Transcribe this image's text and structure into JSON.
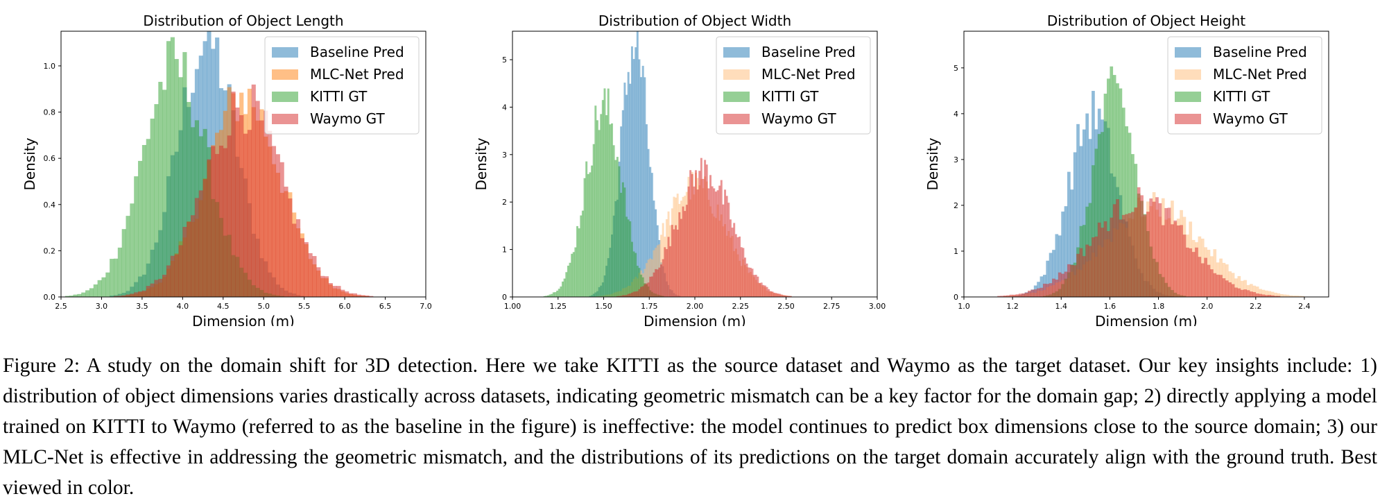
{
  "chart_data": [
    {
      "type": "histogram",
      "title": "Distribution of Object Length",
      "xlabel": "Dimension (m)",
      "ylabel": "Density",
      "xlim": [
        2.5,
        7.0
      ],
      "ylim": [
        0,
        1.15
      ],
      "xticks": [
        "2.5",
        "3.0",
        "3.5",
        "4.0",
        "4.5",
        "5.0",
        "5.5",
        "6.0",
        "6.5",
        "7.0"
      ],
      "yticks": [
        "0.0",
        "0.2",
        "0.4",
        "0.6",
        "0.8",
        "1.0"
      ],
      "legend_position": "top-right",
      "series": [
        {
          "name": "Baseline Pred",
          "color": "#1f77b4",
          "distribution": "normal",
          "mean": 4.3,
          "std": 0.36
        },
        {
          "name": "MLC-Net Pred",
          "color": "#ff7f0e",
          "distribution": "normal",
          "mean": 4.75,
          "std": 0.46
        },
        {
          "name": "KITTI GT",
          "color": "#2ca02c",
          "distribution": "normal",
          "mean": 3.9,
          "std": 0.4
        },
        {
          "name": "Waymo GT",
          "color": "#d62728",
          "distribution": "normal",
          "mean": 4.75,
          "std": 0.48
        }
      ]
    },
    {
      "type": "histogram",
      "title": "Distribution of Object Width",
      "xlabel": "Dimension (m)",
      "ylabel": "Density",
      "xlim": [
        1.0,
        3.0
      ],
      "ylim": [
        0,
        5.6
      ],
      "xticks": [
        "1.00",
        "1.25",
        "1.50",
        "1.75",
        "2.00",
        "2.25",
        "2.50",
        "2.75",
        "3.00"
      ],
      "yticks": [
        "0",
        "1",
        "2",
        "3",
        "4",
        "5"
      ],
      "legend_position": "top-right",
      "series": [
        {
          "name": "Baseline Pred",
          "color": "#1f77b4",
          "distribution": "normal",
          "mean": 1.67,
          "std": 0.075
        },
        {
          "name": "MLC-Net Pred",
          "color": "#ffbb78",
          "distribution": "normal",
          "mean": 2.0,
          "std": 0.17
        },
        {
          "name": "KITTI GT",
          "color": "#2ca02c",
          "distribution": "normal",
          "mean": 1.5,
          "std": 0.1
        },
        {
          "name": "Waymo GT",
          "color": "#d62728",
          "distribution": "normal",
          "mean": 2.05,
          "std": 0.15
        }
      ]
    },
    {
      "type": "histogram",
      "title": "Distribution of Object Height",
      "xlabel": "Dimension (m)",
      "ylabel": "Density",
      "xlim": [
        1.0,
        2.5
      ],
      "ylim": [
        0,
        5.8
      ],
      "xticks": [
        "1.0",
        "1.2",
        "1.4",
        "1.6",
        "1.8",
        "2.0",
        "2.2",
        "2.4"
      ],
      "yticks": [
        "0",
        "1",
        "2",
        "3",
        "4",
        "5"
      ],
      "legend_position": "top-right",
      "series": [
        {
          "name": "Baseline Pred",
          "color": "#1f77b4",
          "distribution": "normal",
          "mean": 1.53,
          "std": 0.1
        },
        {
          "name": "MLC-Net Pred",
          "color": "#ffbb78",
          "distribution": "normal",
          "mean": 1.78,
          "std": 0.2
        },
        {
          "name": "KITTI GT",
          "color": "#2ca02c",
          "distribution": "normal",
          "mean": 1.62,
          "std": 0.09
        },
        {
          "name": "Waymo GT",
          "color": "#d62728",
          "distribution": "normal",
          "mean": 1.72,
          "std": 0.19
        }
      ]
    }
  ],
  "caption": "Figure 2: A study on the domain shift for 3D detection. Here we take KITTI as the source dataset and Waymo as the target dataset. Our key insights include: 1) distribution of object dimensions varies drastically across datasets, indicating geometric mismatch can be a key factor for the domain gap; 2) directly applying a model trained on KITTI to Waymo (referred to as the baseline in the figure) is ineffective: the model continues to predict box dimensions close to the source domain; 3) our MLC-Net is effective in addressing the geometric mismatch, and the distributions of its predictions on the target domain accurately align with the ground truth. Best viewed in color."
}
